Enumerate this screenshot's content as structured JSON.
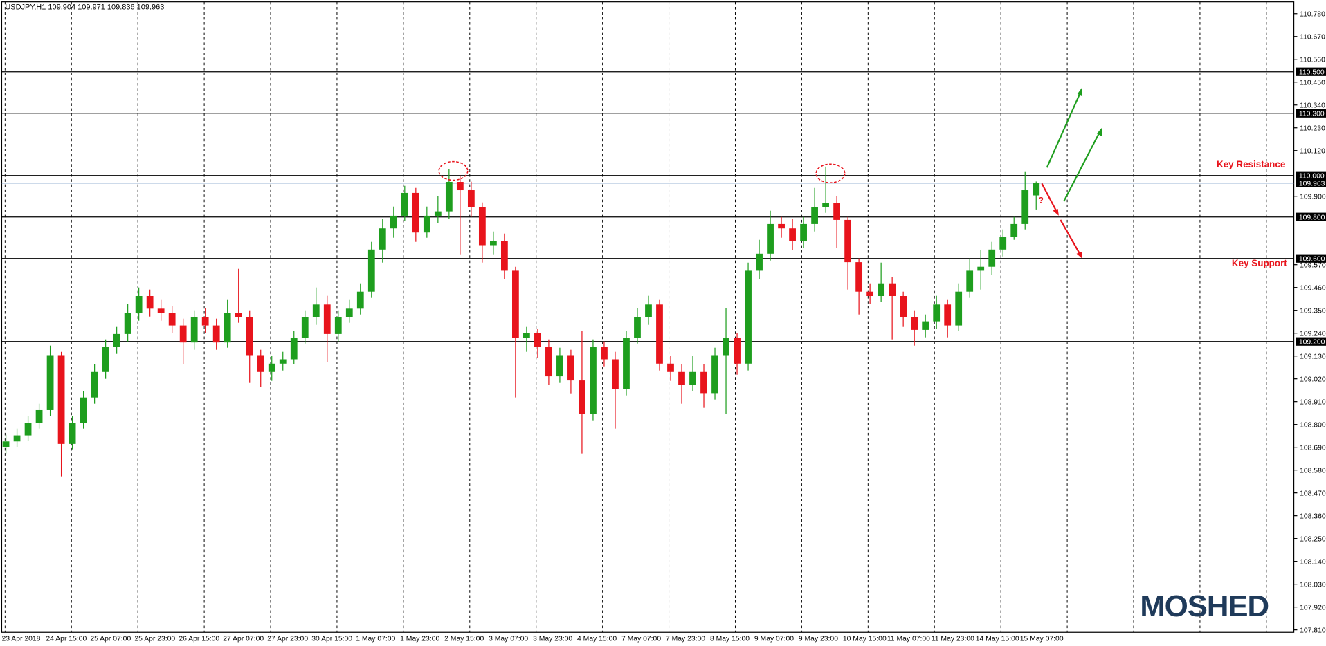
{
  "chart_data": {
    "type": "candlestick",
    "title": "USDJPY,H1  109.904 109.971 109.836 109.963",
    "x_labels": [
      "23 Apr 2018",
      "24 Apr 15:00",
      "25 Apr 07:00",
      "25 Apr 23:00",
      "26 Apr 15:00",
      "27 Apr 07:00",
      "27 Apr 23:00",
      "30 Apr 15:00",
      "1 May 07:00",
      "1 May 23:00",
      "2 May 15:00",
      "3 May 07:00",
      "3 May 23:00",
      "4 May 15:00",
      "7 May 07:00",
      "7 May 23:00",
      "8 May 15:00",
      "9 May 07:00",
      "9 May 23:00",
      "10 May 15:00",
      "11 May 07:00",
      "11 May 23:00",
      "14 May 15:00",
      "15 May 07:00"
    ],
    "open": [
      108.69,
      108.718,
      108.747,
      108.808,
      108.869,
      109.134,
      108.706,
      108.808,
      108.93,
      109.053,
      109.175,
      109.236,
      109.338,
      109.419,
      109.358,
      109.338,
      109.277,
      109.195,
      109.317,
      109.277,
      109.195,
      109.338,
      109.317,
      109.134,
      109.053,
      109.093,
      109.114,
      109.216,
      109.317,
      109.378,
      109.236,
      109.317,
      109.358,
      109.44,
      109.643,
      109.745,
      109.806,
      109.916,
      109.725,
      109.806,
      109.827,
      109.969,
      109.929,
      109.847,
      109.664,
      109.684,
      109.541,
      109.216,
      109.24,
      109.175,
      109.032,
      109.134,
      109.012,
      108.849,
      109.175,
      109.114,
      108.971,
      109.216,
      109.317,
      109.378,
      109.093,
      109.053,
      108.991,
      109.053,
      108.951,
      109.134,
      109.216,
      109.093,
      109.541,
      109.623,
      109.766,
      109.745,
      109.684,
      109.766,
      109.847,
      109.867,
      109.786,
      109.582,
      109.44,
      109.419,
      109.48,
      109.419,
      109.317,
      109.256,
      109.297,
      109.378,
      109.277,
      109.44,
      109.541,
      109.56,
      109.643,
      109.704,
      109.766,
      109.904
    ],
    "high": [
      108.75,
      108.78,
      108.84,
      108.9,
      109.18,
      109.15,
      108.84,
      108.96,
      109.09,
      109.21,
      109.27,
      109.38,
      109.46,
      109.45,
      109.4,
      109.37,
      109.31,
      109.35,
      109.36,
      109.31,
      109.4,
      109.55,
      109.35,
      109.16,
      109.13,
      109.15,
      109.25,
      109.35,
      109.46,
      109.42,
      109.35,
      109.4,
      109.48,
      109.68,
      109.79,
      109.85,
      109.95,
      109.94,
      109.85,
      109.9,
      110.03,
      110.0,
      109.97,
      109.87,
      109.73,
      109.72,
      109.56,
      109.27,
      109.26,
      109.21,
      109.17,
      109.16,
      109.25,
      109.21,
      109.2,
      109.15,
      109.25,
      109.36,
      109.42,
      109.4,
      109.13,
      109.09,
      109.13,
      109.09,
      109.17,
      109.36,
      109.24,
      109.58,
      109.69,
      109.83,
      109.8,
      109.79,
      109.8,
      109.94,
      110.043,
      109.9,
      109.8,
      109.6,
      109.48,
      109.58,
      109.51,
      109.44,
      109.35,
      109.33,
      109.42,
      109.4,
      109.48,
      109.6,
      109.64,
      109.68,
      109.74,
      109.8,
      110.02,
      109.971
    ],
    "low": [
      108.66,
      108.69,
      108.72,
      108.78,
      108.84,
      108.55,
      108.68,
      108.78,
      108.9,
      109.02,
      109.14,
      109.2,
      109.3,
      109.32,
      109.3,
      109.24,
      109.09,
      109.16,
      109.24,
      109.16,
      109.17,
      109.29,
      109.0,
      108.98,
      109.01,
      109.06,
      109.09,
      109.19,
      109.28,
      109.1,
      109.2,
      109.29,
      109.33,
      109.41,
      109.58,
      109.7,
      109.78,
      109.68,
      109.7,
      109.77,
      109.79,
      109.62,
      109.8,
      109.58,
      109.62,
      109.5,
      108.93,
      109.15,
      109.12,
      108.99,
      109.0,
      108.95,
      108.66,
      108.82,
      109.08,
      108.78,
      108.94,
      109.19,
      109.28,
      109.06,
      109.01,
      108.9,
      108.96,
      108.88,
      108.92,
      108.85,
      109.04,
      109.06,
      109.5,
      109.59,
      109.7,
      109.64,
      109.65,
      109.73,
      109.82,
      109.65,
      109.45,
      109.33,
      109.38,
      109.39,
      109.21,
      109.27,
      109.18,
      109.22,
      109.26,
      109.22,
      109.25,
      109.41,
      109.45,
      109.52,
      109.61,
      109.69,
      109.74,
      109.836
    ],
    "close": [
      108.718,
      108.747,
      108.808,
      108.869,
      109.134,
      108.706,
      108.808,
      108.93,
      109.053,
      109.175,
      109.236,
      109.338,
      109.419,
      109.358,
      109.338,
      109.277,
      109.195,
      109.317,
      109.277,
      109.195,
      109.338,
      109.317,
      109.134,
      109.053,
      109.093,
      109.114,
      109.216,
      109.317,
      109.378,
      109.236,
      109.317,
      109.358,
      109.44,
      109.643,
      109.745,
      109.806,
      109.916,
      109.725,
      109.806,
      109.827,
      109.969,
      109.929,
      109.847,
      109.664,
      109.684,
      109.541,
      109.216,
      109.24,
      109.175,
      109.032,
      109.134,
      109.012,
      108.849,
      109.175,
      109.114,
      108.971,
      109.216,
      109.317,
      109.378,
      109.093,
      109.053,
      108.991,
      109.053,
      108.951,
      109.134,
      109.216,
      109.093,
      109.541,
      109.623,
      109.766,
      109.745,
      109.684,
      109.766,
      109.847,
      109.867,
      109.786,
      109.582,
      109.44,
      109.419,
      109.48,
      109.419,
      109.317,
      109.256,
      109.297,
      109.378,
      109.277,
      109.44,
      109.541,
      109.56,
      109.643,
      109.704,
      109.766,
      109.929,
      109.963
    ],
    "up_color": "#1e9e1e",
    "down_color": "#e8141c",
    "ylim": [
      107.798,
      110.837
    ],
    "yticks": [
      {
        "value": 110.78,
        "label": "110.780"
      },
      {
        "value": 110.67,
        "label": "110.670"
      },
      {
        "value": 110.56,
        "label": "110.560"
      },
      {
        "value": 110.45,
        "label": "110.450"
      },
      {
        "value": 110.34,
        "label": "110.340"
      },
      {
        "value": 110.23,
        "label": "110.230"
      },
      {
        "value": 110.12,
        "label": "110.120"
      },
      {
        "value": 109.9,
        "label": "109.900"
      },
      {
        "value": 109.57,
        "label": "109.570"
      },
      {
        "value": 109.46,
        "label": "109.460"
      },
      {
        "value": 109.35,
        "label": "109.350"
      },
      {
        "value": 109.24,
        "label": "109.240"
      },
      {
        "value": 109.13,
        "label": "109.130"
      },
      {
        "value": 109.02,
        "label": "109.020"
      },
      {
        "value": 108.91,
        "label": "108.910"
      },
      {
        "value": 108.8,
        "label": "108.800"
      },
      {
        "value": 108.69,
        "label": "108.690"
      },
      {
        "value": 108.58,
        "label": "108.580"
      },
      {
        "value": 108.47,
        "label": "108.470"
      },
      {
        "value": 108.36,
        "label": "108.360"
      },
      {
        "value": 108.25,
        "label": "108.250"
      },
      {
        "value": 108.14,
        "label": "108.140"
      },
      {
        "value": 108.03,
        "label": "108.030"
      },
      {
        "value": 107.92,
        "label": "107.920"
      },
      {
        "value": 107.81,
        "label": "107.810"
      }
    ],
    "levels": [
      {
        "value": 110.5,
        "label": "110.500"
      },
      {
        "value": 110.3,
        "label": "110.300"
      },
      {
        "value": 110.0,
        "label": "110.000"
      },
      {
        "value": 109.8,
        "label": "109.800"
      },
      {
        "value": 109.6,
        "label": "109.600"
      },
      {
        "value": 109.2,
        "label": "109.200"
      }
    ],
    "current_price": 109.963,
    "annotations": {
      "resistance": "Key Resistance",
      "support": "Key Support",
      "question": "?"
    },
    "brand": "MOSHED"
  }
}
